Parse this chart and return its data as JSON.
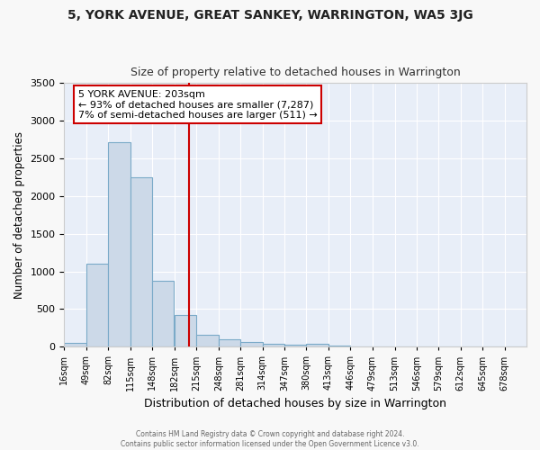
{
  "title1": "5, YORK AVENUE, GREAT SANKEY, WARRINGTON, WA5 3JG",
  "title2": "Size of property relative to detached houses in Warrington",
  "xlabel": "Distribution of detached houses by size in Warrington",
  "ylabel": "Number of detached properties",
  "bin_edges": [
    16,
    49,
    82,
    115,
    148,
    182,
    215,
    248,
    281,
    314,
    347,
    380,
    413,
    446,
    479,
    513,
    546,
    579,
    612,
    645,
    678,
    711
  ],
  "bar_heights": [
    50,
    1100,
    2720,
    2250,
    870,
    420,
    160,
    100,
    60,
    40,
    30,
    40,
    15,
    0,
    0,
    0,
    0,
    0,
    0,
    0,
    0
  ],
  "bar_color": "#ccd9e8",
  "bar_edge_color": "#7aaac8",
  "property_size": 203,
  "vline_color": "#cc0000",
  "ylim": [
    0,
    3500
  ],
  "yticks": [
    0,
    500,
    1000,
    1500,
    2000,
    2500,
    3000,
    3500
  ],
  "annotation_line1": "5 YORK AVENUE: 203sqm",
  "annotation_line2": "← 93% of detached houses are smaller (7,287)",
  "annotation_line3": "7% of semi-detached houses are larger (511) →",
  "annotation_box_color": "#ffffff",
  "annotation_box_edge": "#cc0000",
  "fig_bg_color": "#f8f8f8",
  "plot_bg_color": "#e8eef8",
  "grid_color": "#ffffff",
  "footer1": "Contains HM Land Registry data © Crown copyright and database right 2024.",
  "footer2": "Contains public sector information licensed under the Open Government Licence v3.0."
}
